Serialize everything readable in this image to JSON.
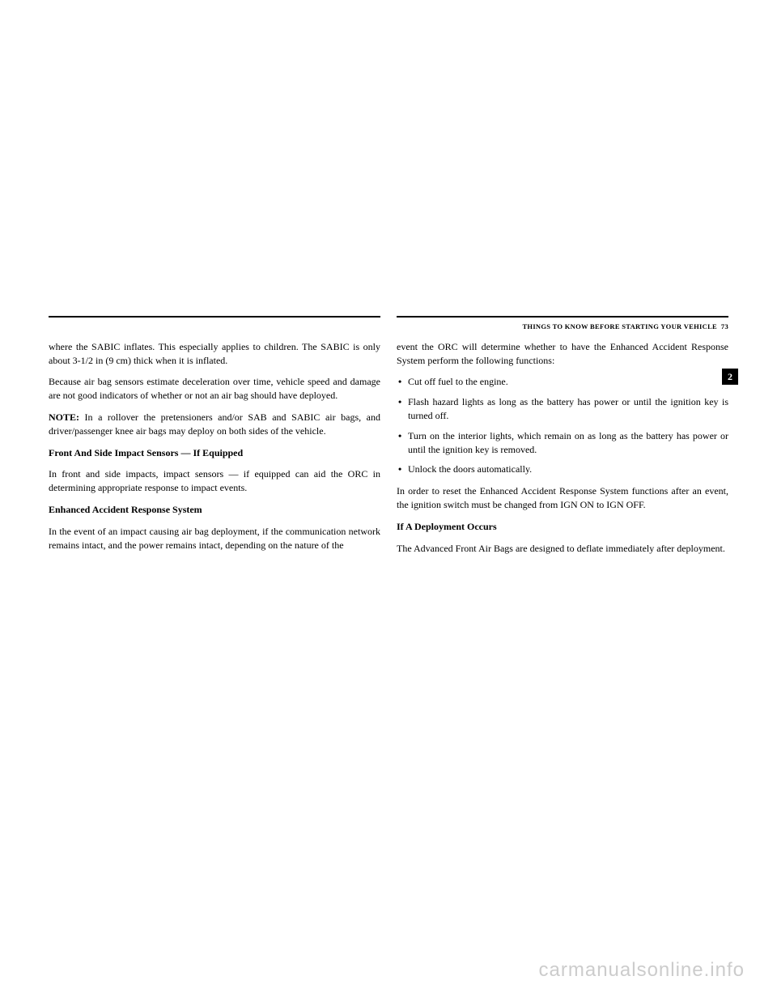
{
  "header": {
    "section_title": "THINGS TO KNOW BEFORE STARTING YOUR VEHICLE",
    "page_number": "73"
  },
  "chapter_tab": "2",
  "left_column": {
    "p1": "where the SABIC inflates. This especially applies to children. The SABIC is only about 3-1/2 in (9 cm) thick when it is inflated.",
    "p2": "Because air bag sensors estimate deceleration over time, vehicle speed and damage are not good indicators of whether or not an air bag should have deployed.",
    "p3_label": "NOTE:",
    "p3_text": " In a rollover the pretensioners and/or SAB and SABIC air bags, and driver/passenger knee air bags may deploy on both sides of the vehicle.",
    "h1": "Front And Side Impact Sensors — If Equipped",
    "p4": "In front and side impacts, impact sensors — if equipped can aid the ORC in determining appropriate response to impact events.",
    "h2": "Enhanced Accident Response System",
    "p5": "In the event of an impact causing air bag deployment, if the communication network remains intact, and the power remains intact, depending on the nature of the"
  },
  "right_column": {
    "p1": "event the ORC will determine whether to have the Enhanced Accident Response System perform the following functions:",
    "bullets": [
      "Cut off fuel to the engine.",
      "Flash hazard lights as long as the battery has power or until the ignition key is turned off.",
      "Turn on the interior lights, which remain on as long as the battery has power or until the ignition key is removed.",
      "Unlock the doors automatically."
    ],
    "p2": "In order to reset the Enhanced Accident Response System functions after an event, the ignition switch must be changed from IGN ON to IGN OFF.",
    "h1": "If A Deployment Occurs",
    "p3": "The Advanced Front Air Bags are designed to deflate immediately after deployment."
  },
  "watermark": "carmanualsonline.info"
}
